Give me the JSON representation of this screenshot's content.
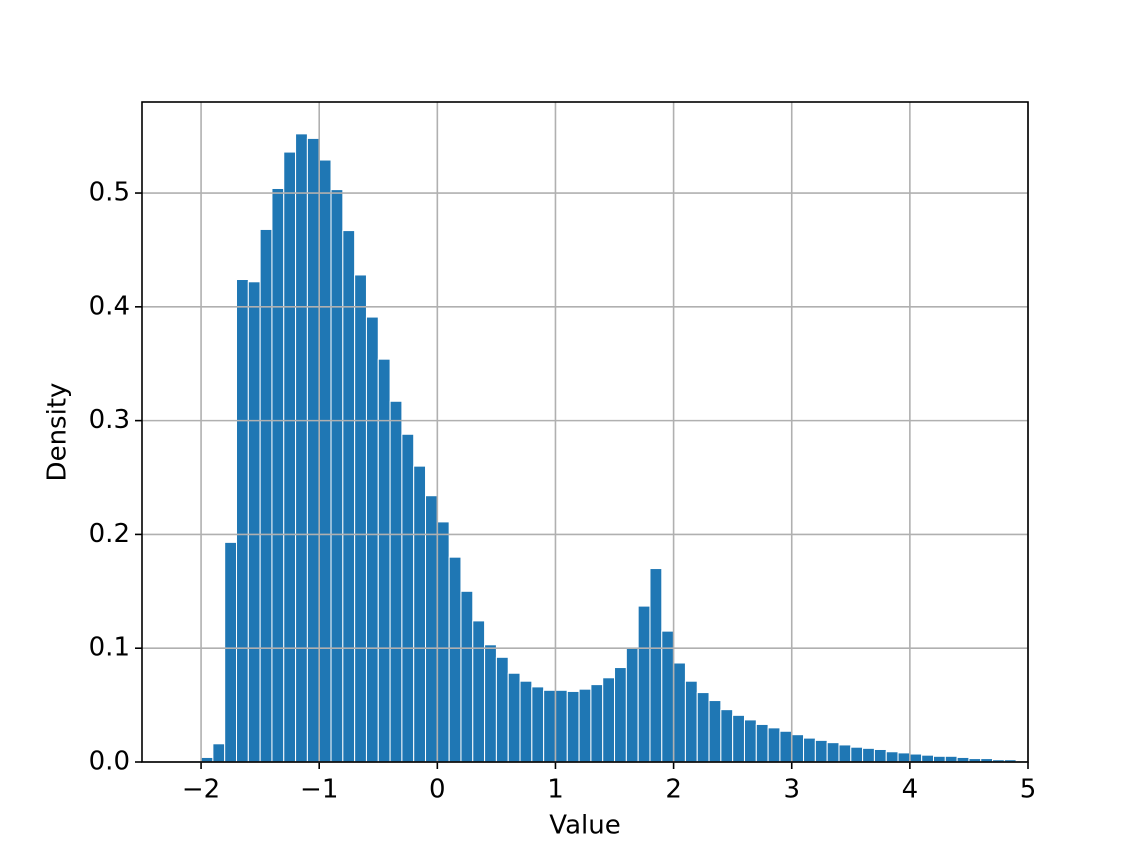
{
  "chart_data": {
    "type": "histogram",
    "xlabel": "Value",
    "ylabel": "Density",
    "color": "#1f77b4",
    "grid": true,
    "bins": [
      -2.1,
      -2.0,
      -1.9,
      -1.8,
      -1.7,
      -1.6,
      -1.5,
      -1.4,
      -1.3,
      -1.2,
      -1.1,
      -1.0,
      -0.9,
      -0.8,
      -0.7,
      -0.6,
      -0.5,
      -0.4,
      -0.3,
      -0.2,
      -0.1,
      0.0,
      0.1,
      0.2,
      0.3,
      0.4,
      0.5,
      0.6,
      0.7,
      0.8,
      0.9,
      1.0,
      1.1,
      1.2,
      1.3,
      1.4,
      1.5,
      1.6,
      1.7,
      1.8,
      1.9,
      2.0,
      2.1,
      2.2,
      2.3,
      2.4,
      2.5,
      2.6,
      2.7,
      2.8,
      2.9,
      3.0,
      3.1,
      3.2,
      3.3,
      3.4,
      3.5,
      3.6,
      3.7,
      3.8,
      3.9,
      4.0,
      4.1,
      4.2,
      4.3,
      4.4,
      4.5,
      4.6,
      4.7,
      4.8,
      4.9,
      5.0
    ],
    "values": [
      0.001,
      0.004,
      0.016,
      0.193,
      0.424,
      0.422,
      0.468,
      0.504,
      0.536,
      0.552,
      0.548,
      0.529,
      0.503,
      0.467,
      0.428,
      0.391,
      0.354,
      0.317,
      0.288,
      0.26,
      0.234,
      0.211,
      0.18,
      0.15,
      0.124,
      0.103,
      0.092,
      0.078,
      0.071,
      0.066,
      0.063,
      0.063,
      0.062,
      0.064,
      0.068,
      0.074,
      0.083,
      0.1,
      0.137,
      0.17,
      0.115,
      0.087,
      0.071,
      0.061,
      0.054,
      0.046,
      0.041,
      0.037,
      0.033,
      0.03,
      0.027,
      0.024,
      0.021,
      0.019,
      0.017,
      0.015,
      0.013,
      0.012,
      0.011,
      0.009,
      0.008,
      0.007,
      0.006,
      0.005,
      0.005,
      0.004,
      0.003,
      0.003,
      0.002,
      0.002,
      0.001
    ],
    "xlim": [
      -2.5,
      5
    ],
    "ylim": [
      0,
      0.58
    ],
    "xticks": [
      {
        "value": -2,
        "label": "−2"
      },
      {
        "value": -1,
        "label": "−1"
      },
      0,
      1,
      2,
      3,
      4,
      5
    ],
    "yticks": [
      {
        "value": 0,
        "label": "0.0"
      },
      0.1,
      0.2,
      0.3,
      0.4,
      0.5
    ]
  }
}
